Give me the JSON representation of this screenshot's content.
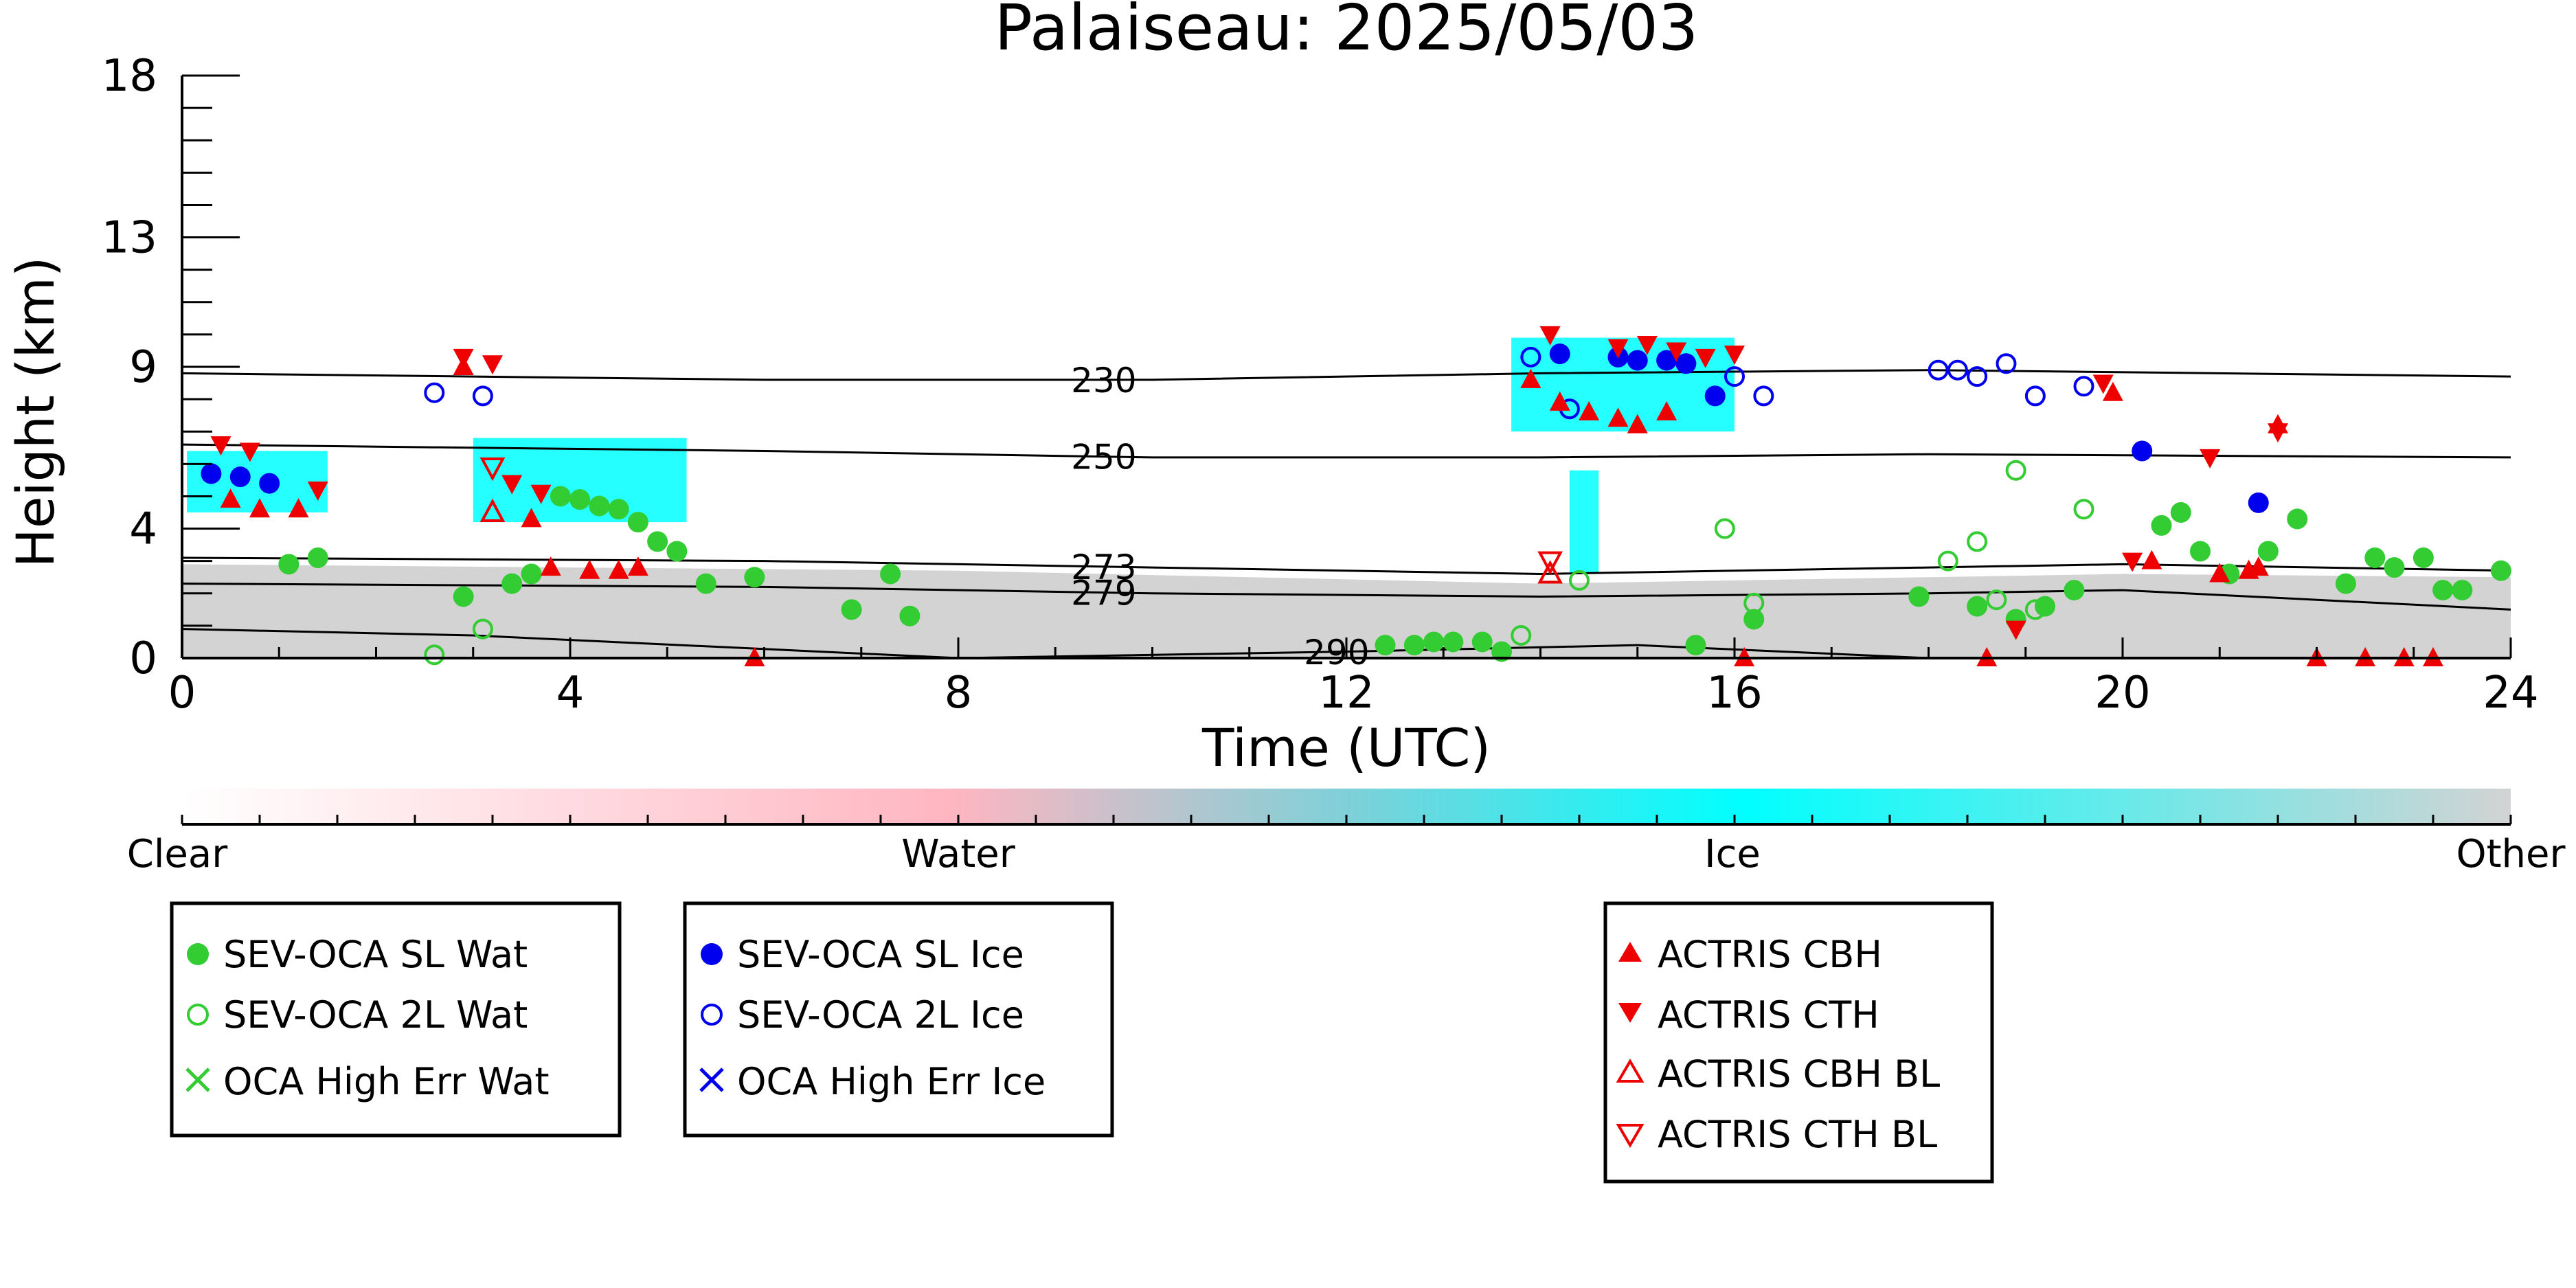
{
  "chart_data": {
    "type": "scatter",
    "title": "Palaiseau: 2025/05/03",
    "xlabel": "Time (UTC)",
    "ylabel": "Height (km)",
    "xlim": [
      0,
      24
    ],
    "ylim": [
      0,
      18
    ],
    "xticks": [
      "0",
      "4",
      "8",
      "12",
      "16",
      "20",
      "24"
    ],
    "yticks": [
      "0",
      "4",
      "9",
      "13",
      "18"
    ],
    "grid": false,
    "colorbar": {
      "labels": [
        "Clear",
        "Water",
        "Ice",
        "Other"
      ],
      "colors": [
        "#ffffff",
        "#ffb6c1",
        "#00ffff",
        "#d3d3d3"
      ]
    },
    "temperature_contours": [
      {
        "label": "230",
        "x": [
          0,
          6,
          10,
          14,
          18,
          24
        ],
        "y": [
          8.8,
          8.6,
          8.6,
          8.8,
          8.9,
          8.7
        ]
      },
      {
        "label": "250",
        "x": [
          0,
          6,
          10,
          14,
          18,
          24
        ],
        "y": [
          6.6,
          6.4,
          6.2,
          6.2,
          6.3,
          6.2
        ]
      },
      {
        "label": "273",
        "x": [
          0,
          6,
          10,
          14,
          18,
          20,
          24
        ],
        "y": [
          3.1,
          3.0,
          2.8,
          2.6,
          2.8,
          2.9,
          2.7
        ]
      },
      {
        "label": "279",
        "x": [
          0,
          6,
          10,
          14,
          18,
          20,
          24
        ],
        "y": [
          2.3,
          2.2,
          2.0,
          1.9,
          2.0,
          2.1,
          1.5
        ]
      },
      {
        "label": "290",
        "x": [
          0,
          3,
          8,
          12,
          15,
          18,
          24
        ],
        "y": [
          0.9,
          0.7,
          0.0,
          0.2,
          0.4,
          0.0,
          0.0
        ]
      }
    ],
    "legend": [
      {
        "label": "SEV-OCA SL Wat",
        "color": "#33cc33",
        "marker": "filled-circle"
      },
      {
        "label": "SEV-OCA 2L Wat",
        "color": "#33cc33",
        "marker": "open-circle"
      },
      {
        "label": "OCA High Err Wat",
        "color": "#33cc33",
        "marker": "x"
      },
      {
        "label": "SEV-OCA SL Ice",
        "color": "#0000ee",
        "marker": "filled-circle"
      },
      {
        "label": "SEV-OCA 2L Ice",
        "color": "#0000ee",
        "marker": "open-circle"
      },
      {
        "label": "OCA High Err Ice",
        "color": "#0000ee",
        "marker": "x"
      },
      {
        "label": "ACTRIS CBH",
        "color": "#ee0000",
        "marker": "triangle-up"
      },
      {
        "label": "ACTRIS CTH",
        "color": "#ee0000",
        "marker": "triangle-down"
      },
      {
        "label": "ACTRIS CBH BL",
        "color": "#ee0000",
        "marker": "open-triangle-up"
      },
      {
        "label": "ACTRIS CTH BL",
        "color": "#ee0000",
        "marker": "open-triangle-down"
      }
    ],
    "series": [
      {
        "name": "SEV-OCA SL Wat",
        "points": [
          [
            1.1,
            2.9
          ],
          [
            1.4,
            3.1
          ],
          [
            2.9,
            1.9
          ],
          [
            3.4,
            2.3
          ],
          [
            3.6,
            2.6
          ],
          [
            3.9,
            5.0
          ],
          [
            4.1,
            4.9
          ],
          [
            4.3,
            4.7
          ],
          [
            4.5,
            4.6
          ],
          [
            4.7,
            4.2
          ],
          [
            4.9,
            3.6
          ],
          [
            5.1,
            3.3
          ],
          [
            5.4,
            2.3
          ],
          [
            5.9,
            2.5
          ],
          [
            6.9,
            1.5
          ],
          [
            7.3,
            2.6
          ],
          [
            7.5,
            1.3
          ],
          [
            12.4,
            0.4
          ],
          [
            12.7,
            0.4
          ],
          [
            12.9,
            0.5
          ],
          [
            13.1,
            0.5
          ],
          [
            13.4,
            0.5
          ],
          [
            13.6,
            0.2
          ],
          [
            15.6,
            0.4
          ],
          [
            16.2,
            1.2
          ],
          [
            17.9,
            1.9
          ],
          [
            18.5,
            1.6
          ],
          [
            18.9,
            1.2
          ],
          [
            19.2,
            1.6
          ],
          [
            19.5,
            2.1
          ],
          [
            20.4,
            4.1
          ],
          [
            20.6,
            4.5
          ],
          [
            20.8,
            3.3
          ],
          [
            21.1,
            2.6
          ],
          [
            21.5,
            3.3
          ],
          [
            21.8,
            4.3
          ],
          [
            22.3,
            2.3
          ],
          [
            22.6,
            3.1
          ],
          [
            22.8,
            2.8
          ],
          [
            23.1,
            3.1
          ],
          [
            23.3,
            2.1
          ],
          [
            23.5,
            2.1
          ],
          [
            23.9,
            2.7
          ]
        ]
      },
      {
        "name": "SEV-OCA 2L Wat",
        "points": [
          [
            2.6,
            0.1
          ],
          [
            3.1,
            0.9
          ],
          [
            13.8,
            0.7
          ],
          [
            14.4,
            2.4
          ],
          [
            15.9,
            4.0
          ],
          [
            16.2,
            1.7
          ],
          [
            18.2,
            3.0
          ],
          [
            18.5,
            3.6
          ],
          [
            18.7,
            1.8
          ],
          [
            18.9,
            5.8
          ],
          [
            19.1,
            1.5
          ],
          [
            19.6,
            4.6
          ]
        ]
      },
      {
        "name": "SEV-OCA SL Ice",
        "points": [
          [
            0.3,
            5.7
          ],
          [
            0.6,
            5.6
          ],
          [
            0.9,
            5.4
          ],
          [
            14.2,
            9.4
          ],
          [
            14.8,
            9.3
          ],
          [
            15.0,
            9.2
          ],
          [
            15.3,
            9.2
          ],
          [
            15.5,
            9.1
          ],
          [
            15.8,
            8.1
          ],
          [
            20.2,
            6.4
          ],
          [
            21.4,
            4.8
          ]
        ]
      },
      {
        "name": "SEV-OCA 2L Ice",
        "points": [
          [
            2.6,
            8.2
          ],
          [
            3.1,
            8.1
          ],
          [
            13.9,
            9.3
          ],
          [
            14.3,
            7.7
          ],
          [
            16.0,
            8.7
          ],
          [
            16.3,
            8.1
          ],
          [
            18.1,
            8.9
          ],
          [
            18.3,
            8.9
          ],
          [
            18.5,
            8.7
          ],
          [
            18.8,
            9.1
          ],
          [
            19.1,
            8.1
          ],
          [
            19.6,
            8.4
          ]
        ]
      },
      {
        "name": "ACTRIS CBH",
        "points": [
          [
            0.5,
            4.9
          ],
          [
            0.8,
            4.6
          ],
          [
            1.2,
            4.6
          ],
          [
            2.9,
            9.0
          ],
          [
            3.6,
            4.3
          ],
          [
            3.8,
            2.8
          ],
          [
            4.2,
            2.7
          ],
          [
            4.5,
            2.7
          ],
          [
            4.7,
            2.8
          ],
          [
            5.9,
            0.0
          ],
          [
            13.9,
            8.6
          ],
          [
            14.2,
            7.9
          ],
          [
            14.5,
            7.6
          ],
          [
            14.8,
            7.4
          ],
          [
            15.0,
            7.2
          ],
          [
            15.3,
            7.6
          ],
          [
            16.1,
            0.0
          ],
          [
            18.6,
            0.0
          ],
          [
            19.9,
            8.2
          ],
          [
            20.3,
            3.0
          ],
          [
            21.0,
            2.6
          ],
          [
            21.3,
            2.7
          ],
          [
            21.4,
            2.8
          ],
          [
            21.6,
            7.2
          ],
          [
            22.0,
            0.0
          ],
          [
            22.5,
            0.0
          ],
          [
            22.9,
            0.0
          ],
          [
            23.2,
            0.0
          ]
        ]
      },
      {
        "name": "ACTRIS CTH",
        "points": [
          [
            0.4,
            6.6
          ],
          [
            0.7,
            6.4
          ],
          [
            1.4,
            5.2
          ],
          [
            2.9,
            9.3
          ],
          [
            3.2,
            9.1
          ],
          [
            3.4,
            5.4
          ],
          [
            3.7,
            5.1
          ],
          [
            14.1,
            10.0
          ],
          [
            14.8,
            9.6
          ],
          [
            15.1,
            9.7
          ],
          [
            15.4,
            9.5
          ],
          [
            15.7,
            9.3
          ],
          [
            16.0,
            9.4
          ],
          [
            19.8,
            8.5
          ],
          [
            20.1,
            3.0
          ],
          [
            20.9,
            6.2
          ],
          [
            21.6,
            7.0
          ],
          [
            18.9,
            0.9
          ]
        ]
      },
      {
        "name": "ACTRIS CBH BL",
        "points": [
          [
            3.2,
            4.5
          ],
          [
            14.1,
            2.6
          ]
        ]
      },
      {
        "name": "ACTRIS CTH BL",
        "points": [
          [
            3.2,
            5.9
          ],
          [
            14.1,
            3.0
          ]
        ]
      }
    ]
  }
}
